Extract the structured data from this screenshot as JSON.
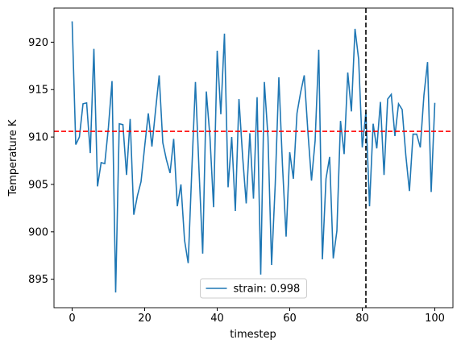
{
  "chart_data": {
    "type": "line",
    "xlabel": "timestep",
    "ylabel": "Temperature K",
    "x": [
      0,
      1,
      2,
      3,
      4,
      5,
      6,
      7,
      8,
      9,
      10,
      11,
      12,
      13,
      14,
      15,
      16,
      17,
      18,
      19,
      20,
      21,
      22,
      23,
      24,
      25,
      26,
      27,
      28,
      29,
      30,
      31,
      32,
      33,
      34,
      35,
      36,
      37,
      38,
      39,
      40,
      41,
      42,
      43,
      44,
      45,
      46,
      47,
      48,
      49,
      50,
      51,
      52,
      53,
      54,
      55,
      56,
      57,
      58,
      59,
      60,
      61,
      62,
      63,
      64,
      65,
      66,
      67,
      68,
      69,
      70,
      71,
      72,
      73,
      74,
      75,
      76,
      77,
      78,
      79,
      80,
      81,
      82,
      83,
      84,
      85,
      86,
      87,
      88,
      89,
      90,
      91,
      92,
      93,
      94,
      95,
      96,
      97,
      98,
      99,
      100
    ],
    "series": [
      {
        "name": "strain: 0.998",
        "color": "#1f77b4",
        "values": [
          922.2,
          909.2,
          910.0,
          913.5,
          913.6,
          908.3,
          919.3,
          904.8,
          907.3,
          907.2,
          911.0,
          915.9,
          893.6,
          911.4,
          911.3,
          906.0,
          911.9,
          901.8,
          903.8,
          905.3,
          909.0,
          912.5,
          909.0,
          912.8,
          916.5,
          909.4,
          907.6,
          906.2,
          909.8,
          902.7,
          905.0,
          899.1,
          896.7,
          906.5,
          915.8,
          906.4,
          897.7,
          914.8,
          910.0,
          902.6,
          919.1,
          912.4,
          920.9,
          904.7,
          910.0,
          902.2,
          914.0,
          908.0,
          903.0,
          910.4,
          903.5,
          914.2,
          895.5,
          915.8,
          910.0,
          896.5,
          905.0,
          916.3,
          907.0,
          899.5,
          908.4,
          905.6,
          912.5,
          914.7,
          916.5,
          910.6,
          905.4,
          909.6,
          919.2,
          897.1,
          905.6,
          907.9,
          897.2,
          900.1,
          911.7,
          908.2,
          916.8,
          912.7,
          921.4,
          918.2,
          908.9,
          912.6,
          902.7,
          911.4,
          908.8,
          913.7,
          906.0,
          914.0,
          914.5,
          910.1,
          913.5,
          912.9,
          908.1,
          904.3,
          910.3,
          910.3,
          908.9,
          914.4,
          917.9,
          904.2,
          913.6
        ]
      }
    ],
    "hline": {
      "y": 910.6,
      "color": "#ff0000"
    },
    "vline": {
      "x": 81,
      "color": "#000000"
    },
    "xlim": [
      -5,
      105
    ],
    "ylim": [
      892,
      923.6
    ],
    "xticks": [
      0,
      20,
      40,
      60,
      80,
      100
    ],
    "yticks": [
      895,
      900,
      905,
      910,
      915,
      920
    ],
    "legend": "lower center"
  }
}
